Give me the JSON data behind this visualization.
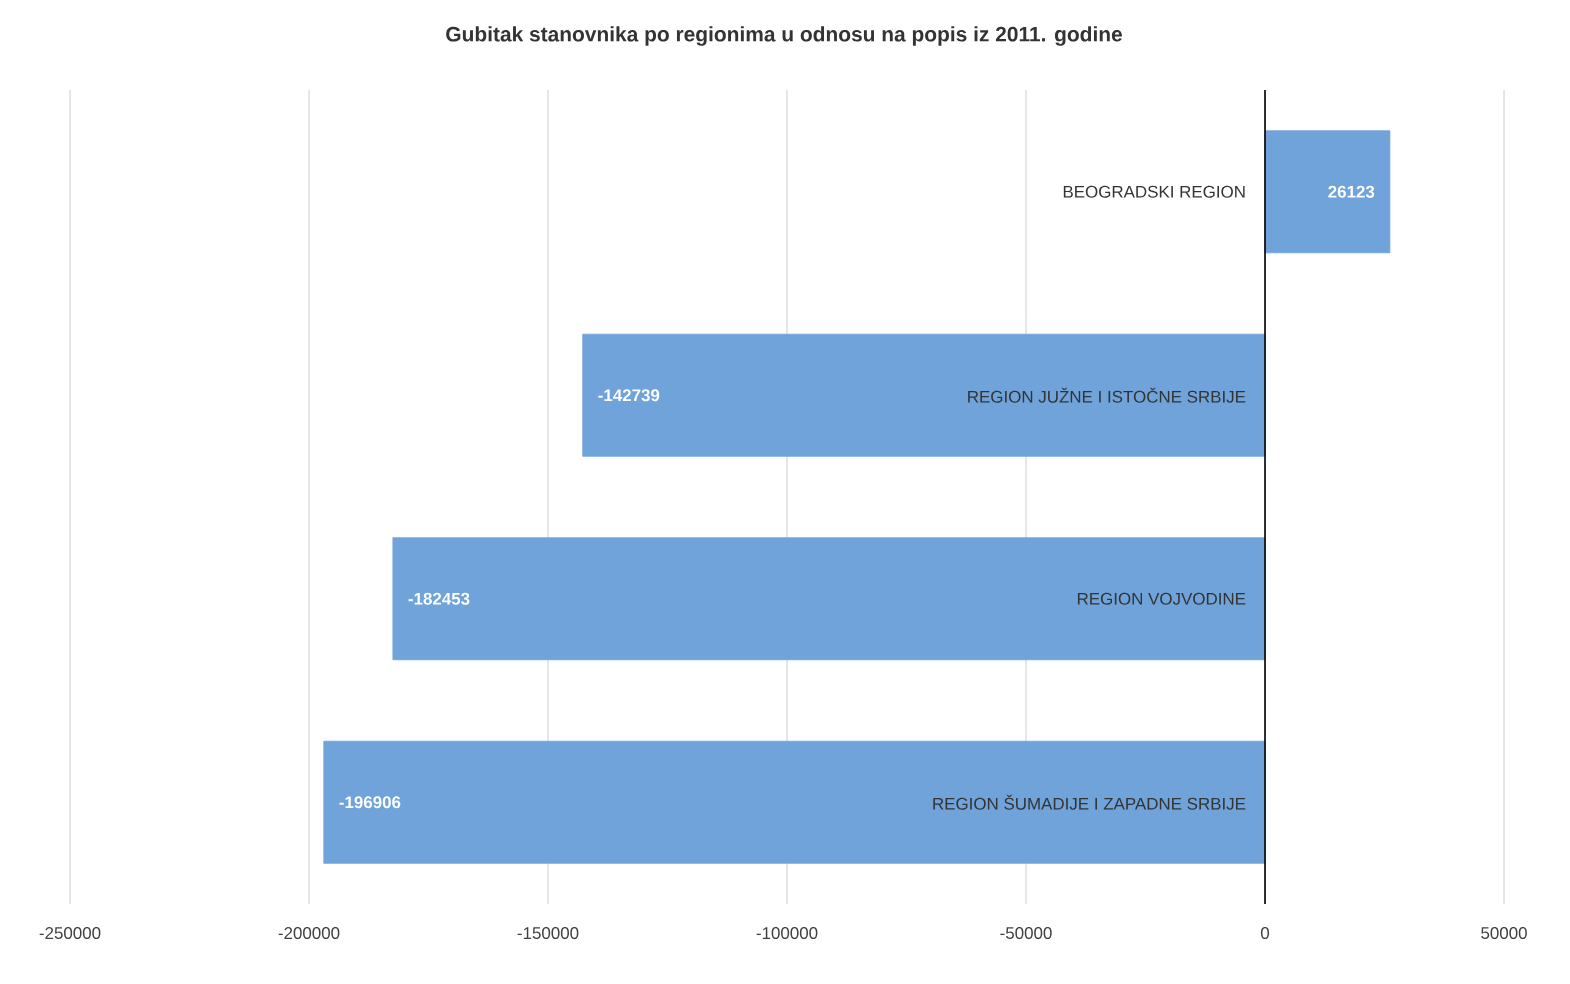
{
  "chart_data": {
    "type": "bar",
    "orientation": "horizontal",
    "title": "Gubitak stanovnika po regionima u odnosu na popis iz 2011. godine",
    "categories": [
      "BEOGRADSKI REGION",
      "REGION JUŽNE I ISTOČNE SRBIJE",
      "REGION VOJVODINE",
      "REGION ŠUMADIJE I ZAPADNE SRBIJE"
    ],
    "values": [
      26123,
      -142739,
      -182453,
      -196906
    ],
    "color": "#6fa3d9",
    "xlim": [
      -250000,
      50000
    ],
    "xticks": [
      -250000,
      -200000,
      -150000,
      -100000,
      -50000,
      0,
      50000
    ],
    "grid": "x",
    "data_labels": true
  }
}
